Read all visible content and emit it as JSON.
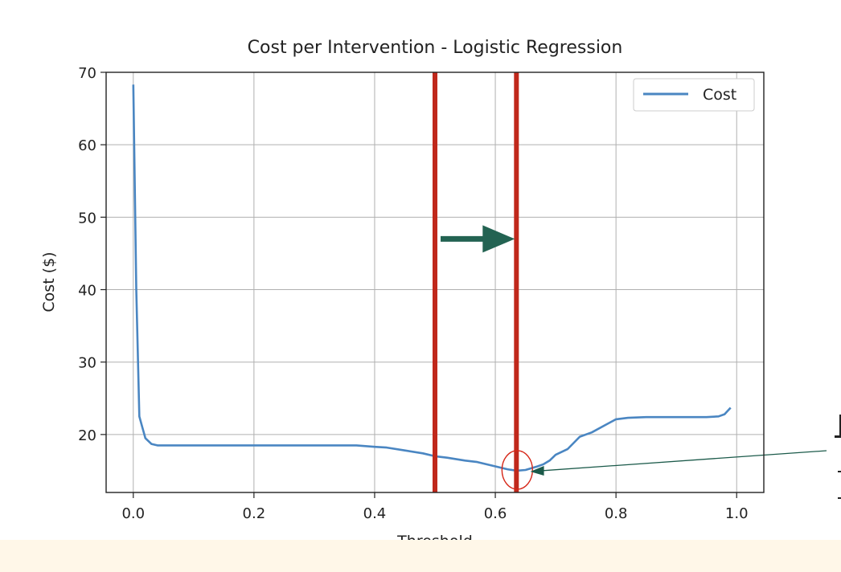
{
  "chart_data": {
    "type": "line",
    "title": "Cost per Intervention - Logistic Regression",
    "xlabel": "Threshold",
    "ylabel": "Cost ($)",
    "xlim": [
      -0.045,
      1.045
    ],
    "ylim": [
      12,
      70
    ],
    "xticks": [
      0.0,
      0.2,
      0.4,
      0.6,
      0.8,
      1.0
    ],
    "xtick_labels": [
      "0.0",
      "0.2",
      "0.4",
      "0.6",
      "0.8",
      "1.0"
    ],
    "yticks": [
      20,
      30,
      40,
      50,
      60,
      70
    ],
    "ytick_labels": [
      "20",
      "30",
      "40",
      "50",
      "60",
      "70"
    ],
    "grid": true,
    "legend_position": "top-right",
    "series": [
      {
        "name": "Cost",
        "color": "#4a86c2",
        "x": [
          0.0,
          0.005,
          0.01,
          0.015,
          0.02,
          0.03,
          0.04,
          0.1,
          0.2,
          0.3,
          0.37,
          0.4,
          0.42,
          0.45,
          0.48,
          0.5,
          0.52,
          0.55,
          0.57,
          0.6,
          0.62,
          0.635,
          0.65,
          0.67,
          0.68,
          0.69,
          0.7,
          0.72,
          0.74,
          0.76,
          0.78,
          0.8,
          0.82,
          0.85,
          0.9,
          0.95,
          0.97,
          0.98,
          0.99
        ],
        "y": [
          68.3,
          40.0,
          22.5,
          21.0,
          19.5,
          18.7,
          18.5,
          18.5,
          18.5,
          18.5,
          18.5,
          18.3,
          18.2,
          17.8,
          17.4,
          17.0,
          16.8,
          16.4,
          16.2,
          15.6,
          15.2,
          15.0,
          15.1,
          15.6,
          15.9,
          16.4,
          17.2,
          18.0,
          19.7,
          20.3,
          21.2,
          22.1,
          22.3,
          22.4,
          22.4,
          22.4,
          22.5,
          22.8,
          23.7
        ]
      }
    ],
    "annotations": {
      "vertical_lines": [
        {
          "x": 0.5,
          "color": "#c0281b"
        },
        {
          "x": 0.635,
          "color": "#c0281b"
        }
      ],
      "arrow": {
        "from_x": 0.5,
        "to_x": 0.635,
        "y": 47,
        "color": "#236352"
      },
      "minimum_marker": {
        "x": 0.635,
        "y": 15.0,
        "color": "#d62718"
      },
      "pointer_arrow": {
        "to_x": 0.65,
        "to_y": 15.0,
        "color": "#1b5a4a"
      }
    }
  }
}
